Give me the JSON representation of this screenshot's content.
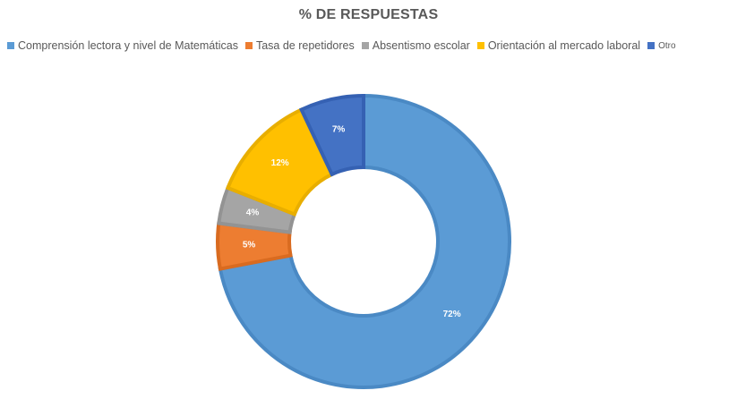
{
  "chart_data": {
    "type": "pie",
    "subtype": "donut",
    "title": "% DE RESPUESTAS",
    "legend_position": "top",
    "categories": [
      "Comprensión lectora y nivel de Matemáticas",
      "Tasa de repetidores",
      "Absentismo escolar",
      "Orientación al mercado laboral",
      "Otro"
    ],
    "values": [
      72,
      5,
      4,
      12,
      7
    ],
    "labels": [
      "72%",
      "5%",
      "4%",
      "12%",
      "7%"
    ],
    "colors": [
      "#5B9BD5",
      "#ED7D31",
      "#A5A5A5",
      "#FFC000",
      "#4472C4"
    ],
    "border_colors": [
      "#4A89C4",
      "#D96B20",
      "#939393",
      "#E8AE00",
      "#3561B3"
    ]
  }
}
